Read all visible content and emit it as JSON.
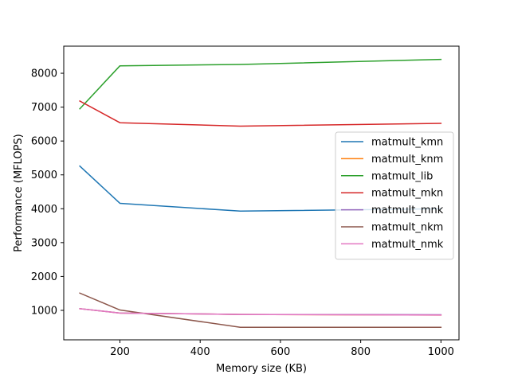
{
  "chart_data": {
    "type": "line",
    "title": "",
    "xlabel": "Memory size (KB)",
    "ylabel": "Performance (MFLOPS)",
    "x": [
      100,
      200,
      500,
      1000
    ],
    "xlim": [
      60,
      1045
    ],
    "ylim": [
      130,
      8800
    ],
    "xticks": [
      200,
      400,
      600,
      800,
      1000
    ],
    "yticks": [
      1000,
      2000,
      3000,
      4000,
      5000,
      6000,
      7000,
      8000
    ],
    "grid": false,
    "legend_position": "center-right",
    "series": [
      {
        "name": "matmult_kmn",
        "color": "#1f77b4",
        "values": [
          5260,
          4160,
          3930,
          4000
        ]
      },
      {
        "name": "matmult_knm",
        "color": "#ff7f0e",
        "values": [
          1050,
          920,
          880,
          860
        ]
      },
      {
        "name": "matmult_lib",
        "color": "#2ca02c",
        "values": [
          6950,
          8220,
          8260,
          8410
        ]
      },
      {
        "name": "matmult_mkn",
        "color": "#d62728",
        "values": [
          7180,
          6540,
          6440,
          6520
        ]
      },
      {
        "name": "matmult_mnk",
        "color": "#9467bd",
        "values": [
          1050,
          920,
          880,
          870
        ]
      },
      {
        "name": "matmult_nkm",
        "color": "#8c564b",
        "values": [
          1510,
          1010,
          500,
          500
        ]
      },
      {
        "name": "matmult_nmk",
        "color": "#e377c2",
        "values": [
          1050,
          920,
          880,
          860
        ]
      }
    ]
  }
}
